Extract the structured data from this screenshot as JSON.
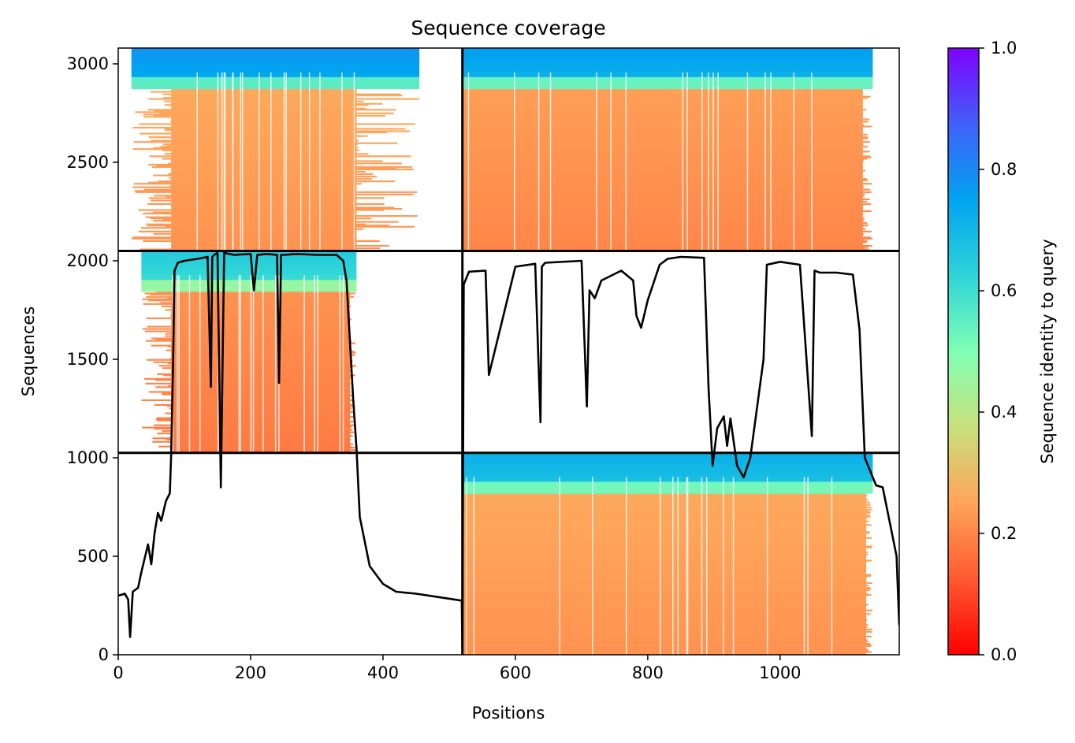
{
  "chart_data": {
    "type": "heatmap",
    "title": "Sequence coverage",
    "xlabel": "Positions",
    "ylabel": "Sequences",
    "colorbar_label": "Sequence identity to query",
    "colormap": "rainbow",
    "xlim": [
      0,
      1180
    ],
    "ylim": [
      0,
      3080
    ],
    "x_ticks": [
      0,
      200,
      400,
      600,
      800,
      1000
    ],
    "x_tick_labels": [
      "0",
      "200",
      "400",
      "600",
      "800",
      "1000"
    ],
    "y_ticks": [
      0,
      500,
      1000,
      1500,
      2000,
      2500,
      3000
    ],
    "y_tick_labels": [
      "0",
      "500",
      "1000",
      "1500",
      "2000",
      "2500",
      "3000"
    ],
    "colorbar_ticks": [
      0.0,
      0.2,
      0.4,
      0.6,
      0.8,
      1.0
    ],
    "colorbar_tick_labels": [
      "0.0",
      "0.2",
      "0.4",
      "0.6",
      "0.8",
      "1.0"
    ],
    "chain_boundaries": {
      "positions": [
        520
      ],
      "sequence_counts": [
        1025,
        2050
      ]
    },
    "blocks": [
      {
        "x": [
          35,
          360
        ],
        "y": [
          1025,
          2050
        ],
        "identity_top": 0.65,
        "identity_bottom": 0.18,
        "dense_x": [
          80,
          350
        ]
      },
      {
        "x": [
          520,
          1140
        ],
        "y": [
          0,
          1025
        ],
        "identity_top": 0.72,
        "identity_bottom": 0.22,
        "dense_x": [
          520,
          1130
        ]
      },
      {
        "x": [
          20,
          455
        ],
        "y": [
          2050,
          3080
        ],
        "identity_top": 0.78,
        "identity_bottom": 0.22,
        "dense_x": [
          80,
          360
        ]
      },
      {
        "x": [
          520,
          1140
        ],
        "y": [
          2050,
          3080
        ],
        "identity_top": 0.76,
        "identity_bottom": 0.2,
        "dense_x": [
          520,
          1125
        ]
      }
    ],
    "coverage_line": {
      "name": "coverage",
      "color": "#000000",
      "x": [
        0,
        10,
        15,
        18,
        22,
        30,
        35,
        45,
        50,
        55,
        60,
        65,
        72,
        78,
        80,
        83,
        85,
        90,
        100,
        120,
        135,
        140,
        142,
        145,
        150,
        155,
        160,
        175,
        200,
        205,
        210,
        225,
        240,
        243,
        246,
        250,
        270,
        300,
        315,
        330,
        340,
        345,
        350,
        355,
        360,
        365,
        380,
        400,
        420,
        450,
        480,
        519,
        520,
        522,
        530,
        555,
        560,
        600,
        630,
        638,
        640,
        645,
        700,
        708,
        712,
        720,
        730,
        760,
        778,
        783,
        790,
        800,
        810,
        818,
        830,
        850,
        885,
        892,
        898,
        905,
        915,
        920,
        925,
        935,
        945,
        955,
        965,
        975,
        980,
        1000,
        1030,
        1048,
        1052,
        1060,
        1075,
        1085,
        1110,
        1120,
        1128,
        1145,
        1155,
        1170,
        1176,
        1180
      ],
      "y": [
        300,
        310,
        280,
        90,
        320,
        340,
        420,
        560,
        460,
        620,
        720,
        680,
        780,
        820,
        1020,
        1500,
        1950,
        1990,
        2000,
        2010,
        2020,
        1360,
        2020,
        2030,
        2040,
        850,
        2040,
        2030,
        2035,
        1850,
        2030,
        2035,
        2030,
        1380,
        2030,
        2030,
        2035,
        2030,
        2030,
        2030,
        2000,
        1900,
        1600,
        1300,
        1050,
        700,
        450,
        360,
        320,
        310,
        295,
        275,
        30,
        1880,
        1945,
        1950,
        1420,
        1970,
        1985,
        1180,
        1970,
        1990,
        2000,
        1260,
        1850,
        1810,
        1900,
        1950,
        1900,
        1720,
        1660,
        1800,
        1900,
        1980,
        2010,
        2020,
        2015,
        1350,
        960,
        1150,
        1210,
        1060,
        1200,
        960,
        900,
        1000,
        1250,
        1500,
        1980,
        1995,
        1980,
        1110,
        1950,
        1940,
        1940,
        1940,
        1930,
        1650,
        1000,
        860,
        850,
        600,
        500,
        150
      ]
    }
  }
}
